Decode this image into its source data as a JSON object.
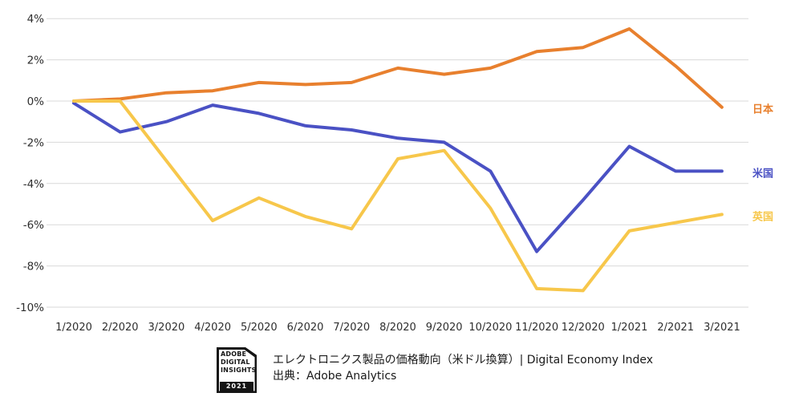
{
  "chart_data": {
    "type": "line",
    "title": "エレクトロニクス製品の価格動向（米ドル換算）| Digital Economy Index",
    "source": "出典：Adobe Analytics",
    "x_labels": [
      "1/2020",
      "2/2020",
      "3/2020",
      "4/2020",
      "5/2020",
      "6/2020",
      "7/2020",
      "8/2020",
      "9/2020",
      "10/2020",
      "11/2020",
      "12/2020",
      "1/2021",
      "2/2021",
      "3/2021"
    ],
    "y_ticks": [
      "4%",
      "2%",
      "0%",
      "-2%",
      "-4%",
      "-6%",
      "-8%",
      "-10%"
    ],
    "y_tick_values": [
      4,
      2,
      0,
      -2,
      -4,
      -6,
      -8,
      -10
    ],
    "ylim": [
      -10,
      4
    ],
    "grid": true,
    "legend_position": "right-of-line-end",
    "series": [
      {
        "key": "jp",
        "name": "日本",
        "color": "#E8802E",
        "values": [
          0,
          0.1,
          0.4,
          0.5,
          0.9,
          0.8,
          0.9,
          1.6,
          1.3,
          1.6,
          2.4,
          2.6,
          3.5,
          1.7,
          -0.3
        ]
      },
      {
        "key": "us",
        "name": "米国",
        "color": "#4A51C4",
        "values": [
          -0.1,
          -1.5,
          -1.0,
          -0.2,
          -0.6,
          -1.2,
          -1.4,
          -1.8,
          -2.0,
          -3.4,
          -7.3,
          -4.8,
          -2.2,
          -3.4,
          -3.4
        ]
      },
      {
        "key": "uk",
        "name": "英国",
        "color": "#F7C74B",
        "values": [
          0,
          0,
          -2.9,
          -5.8,
          -4.7,
          -5.6,
          -6.2,
          -2.8,
          -2.4,
          -5.2,
          -9.1,
          -9.2,
          -6.3,
          -5.9,
          -5.5
        ]
      }
    ]
  },
  "footer": {
    "logo": {
      "line1": "ADOBE",
      "line2": "DIGITAL",
      "line3": "INSIGHTS",
      "year": "2021"
    },
    "caption_line1": "エレクトロニクス製品の価格動向（米ドル換算）| Digital Economy Index",
    "caption_line2": "出典：Adobe Analytics"
  },
  "colors": {
    "background": "#ffffff",
    "gridline": "#d9d9d9",
    "tick_text": "#2e2e2e",
    "caption_text": "#1a1a1a",
    "japan": "#E8802E",
    "us": "#4A51C4",
    "uk": "#F7C74B"
  }
}
